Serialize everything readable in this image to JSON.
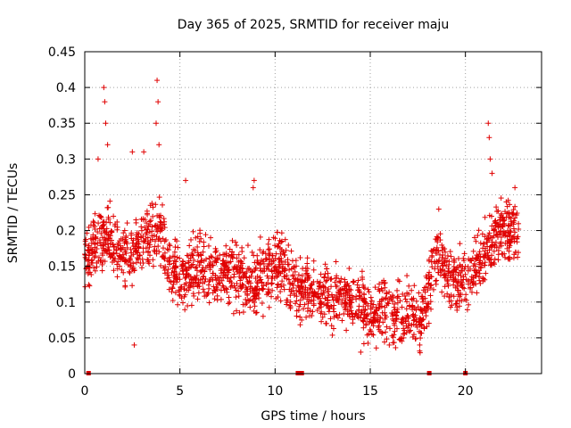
{
  "chart_data": {
    "type": "scatter",
    "title": "Day 365 of 2025, SRMTID for receiver maju",
    "xlabel": "GPS time / hours",
    "ylabel": "SRMTID / TECUs",
    "xlim": [
      0,
      24
    ],
    "ylim": [
      0,
      0.45
    ],
    "xticks": [
      "0",
      "5",
      "10",
      "15",
      "20"
    ],
    "yticks": [
      "0",
      "0.05",
      "0.1",
      "0.15",
      "0.2",
      "0.25",
      "0.3",
      "0.35",
      "0.4",
      "0.45"
    ],
    "grid": true,
    "marker": "+",
    "color": "#e00000",
    "zero_markers_hours": [
      0.2,
      11.2,
      11.4,
      18.1,
      20.0
    ],
    "trend": [
      {
        "x": 0.0,
        "y": 0.16
      },
      {
        "x": 0.5,
        "y": 0.18
      },
      {
        "x": 1.0,
        "y": 0.19
      },
      {
        "x": 1.5,
        "y": 0.18
      },
      {
        "x": 2.0,
        "y": 0.17
      },
      {
        "x": 2.5,
        "y": 0.17
      },
      {
        "x": 3.0,
        "y": 0.18
      },
      {
        "x": 3.5,
        "y": 0.2
      },
      {
        "x": 4.0,
        "y": 0.19
      },
      {
        "x": 4.5,
        "y": 0.15
      },
      {
        "x": 5.0,
        "y": 0.13
      },
      {
        "x": 5.5,
        "y": 0.14
      },
      {
        "x": 6.0,
        "y": 0.15
      },
      {
        "x": 6.5,
        "y": 0.14
      },
      {
        "x": 7.0,
        "y": 0.14
      },
      {
        "x": 7.5,
        "y": 0.15
      },
      {
        "x": 8.0,
        "y": 0.14
      },
      {
        "x": 8.5,
        "y": 0.13
      },
      {
        "x": 9.0,
        "y": 0.13
      },
      {
        "x": 9.5,
        "y": 0.14
      },
      {
        "x": 10.0,
        "y": 0.15
      },
      {
        "x": 10.5,
        "y": 0.15
      },
      {
        "x": 11.0,
        "y": 0.12
      },
      {
        "x": 11.5,
        "y": 0.11
      },
      {
        "x": 12.0,
        "y": 0.12
      },
      {
        "x": 12.5,
        "y": 0.11
      },
      {
        "x": 13.0,
        "y": 0.1
      },
      {
        "x": 13.5,
        "y": 0.11
      },
      {
        "x": 14.0,
        "y": 0.11
      },
      {
        "x": 14.5,
        "y": 0.1
      },
      {
        "x": 15.0,
        "y": 0.08
      },
      {
        "x": 15.5,
        "y": 0.09
      },
      {
        "x": 16.0,
        "y": 0.08
      },
      {
        "x": 16.5,
        "y": 0.08
      },
      {
        "x": 17.0,
        "y": 0.08
      },
      {
        "x": 17.5,
        "y": 0.07
      },
      {
        "x": 18.0,
        "y": 0.11
      },
      {
        "x": 18.5,
        "y": 0.17
      },
      {
        "x": 19.0,
        "y": 0.14
      },
      {
        "x": 19.5,
        "y": 0.13
      },
      {
        "x": 20.0,
        "y": 0.13
      },
      {
        "x": 20.5,
        "y": 0.15
      },
      {
        "x": 21.0,
        "y": 0.17
      },
      {
        "x": 21.5,
        "y": 0.19
      },
      {
        "x": 22.0,
        "y": 0.2
      },
      {
        "x": 22.5,
        "y": 0.2
      },
      {
        "x": 22.8,
        "y": 0.19
      }
    ],
    "spikes": [
      {
        "x": 1.0,
        "y": 0.4
      },
      {
        "x": 1.05,
        "y": 0.38
      },
      {
        "x": 1.1,
        "y": 0.35
      },
      {
        "x": 1.2,
        "y": 0.32
      },
      {
        "x": 0.7,
        "y": 0.3
      },
      {
        "x": 2.5,
        "y": 0.31
      },
      {
        "x": 3.1,
        "y": 0.31
      },
      {
        "x": 3.8,
        "y": 0.41
      },
      {
        "x": 3.85,
        "y": 0.38
      },
      {
        "x": 3.75,
        "y": 0.35
      },
      {
        "x": 3.9,
        "y": 0.32
      },
      {
        "x": 5.3,
        "y": 0.27
      },
      {
        "x": 8.9,
        "y": 0.27
      },
      {
        "x": 8.85,
        "y": 0.26
      },
      {
        "x": 18.6,
        "y": 0.23
      },
      {
        "x": 21.2,
        "y": 0.35
      },
      {
        "x": 21.25,
        "y": 0.33
      },
      {
        "x": 21.3,
        "y": 0.3
      },
      {
        "x": 21.4,
        "y": 0.28
      },
      {
        "x": 22.6,
        "y": 0.26
      },
      {
        "x": 14.5,
        "y": 0.03
      },
      {
        "x": 2.6,
        "y": 0.04
      },
      {
        "x": 17.6,
        "y": 0.04
      },
      {
        "x": 16.0,
        "y": 0.04
      }
    ],
    "spread": 0.04,
    "points_per_hour": 90
  }
}
